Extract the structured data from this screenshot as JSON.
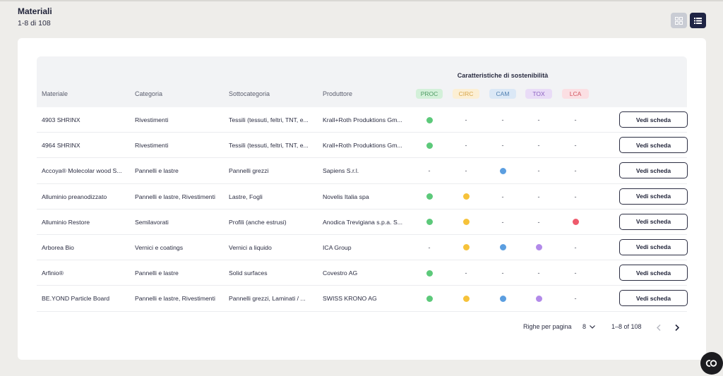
{
  "header": {
    "title": "Materiali",
    "count": "1-8 di 108"
  },
  "view_toggle": {
    "grid_icon": "grid-icon",
    "list_icon": "list-icon",
    "active": "list"
  },
  "table": {
    "group_title": "Caratteristiche di sostenibilità",
    "columns": [
      "Materiale",
      "Categoria",
      "Sottocategoria",
      "Produttore"
    ],
    "badges": [
      {
        "label": "PROC",
        "bg": "#d3f0d9",
        "fg": "#4f9b64"
      },
      {
        "label": "CIRC",
        "bg": "#fcefd4",
        "fg": "#d8a64a"
      },
      {
        "label": "CAM",
        "bg": "#dbe8f6",
        "fg": "#4f7fb0"
      },
      {
        "label": "TOX",
        "bg": "#e9dcf7",
        "fg": "#8a5fc0"
      },
      {
        "label": "LCA",
        "bg": "#fbdfe3",
        "fg": "#d2555f"
      }
    ],
    "dot_colors": {
      "PROC": "#5cc97a",
      "CIRC": "#f6c23a",
      "CAM": "#5b9ee0",
      "TOX": "#b28ae9",
      "LCA": "#ee5a6c"
    },
    "empty_marker": "-",
    "action_label": "Vedi scheda",
    "rows": [
      {
        "materiale": "4903 SHRINX",
        "categoria": "Rivestimenti",
        "sottocategoria": "Tessili (tessuti, feltri, TNT, e...",
        "produttore": "Krall+Roth Produktions Gm...",
        "flags": [
          true,
          false,
          false,
          false,
          false
        ]
      },
      {
        "materiale": "4964 SHRINX",
        "categoria": "Rivestimenti",
        "sottocategoria": "Tessili (tessuti, feltri, TNT, e...",
        "produttore": "Krall+Roth Produktions Gm...",
        "flags": [
          true,
          false,
          false,
          false,
          false
        ]
      },
      {
        "materiale": "Accoya® Molecolar wood S...",
        "categoria": "Pannelli e lastre",
        "sottocategoria": "Pannelli grezzi",
        "produttore": "Sapiens S.r.l.",
        "flags": [
          false,
          false,
          true,
          false,
          false
        ]
      },
      {
        "materiale": "Alluminio preanodizzato",
        "categoria": "Pannelli e lastre, Rivestimenti",
        "sottocategoria": "Lastre, Fogli",
        "produttore": "Novelis Italia spa",
        "flags": [
          true,
          true,
          false,
          false,
          false
        ]
      },
      {
        "materiale": "Alluminio Restore",
        "categoria": "Semilavorati",
        "sottocategoria": "Profili (anche estrusi)",
        "produttore": "Anodica Trevigiana s.p.a. S...",
        "flags": [
          true,
          true,
          false,
          false,
          true
        ]
      },
      {
        "materiale": "Arborea Bio",
        "categoria": "Vernici e coatings",
        "sottocategoria": "Vernici a liquido",
        "produttore": "ICA Group",
        "flags": [
          false,
          true,
          true,
          true,
          false
        ]
      },
      {
        "materiale": "Arfinio®",
        "categoria": "Pannelli e lastre",
        "sottocategoria": "Solid surfaces",
        "produttore": "Covestro AG",
        "flags": [
          true,
          false,
          false,
          false,
          false
        ]
      },
      {
        "materiale": "BE.YOND Particle Board",
        "categoria": "Pannelli e lastre, Rivestimenti",
        "sottocategoria": "Pannelli grezzi, Laminati / ...",
        "produttore": "SWISS KRONO AG",
        "flags": [
          true,
          true,
          true,
          true,
          false
        ]
      }
    ]
  },
  "pagination": {
    "rows_per_page_label": "Righe per pagina",
    "rows_per_page_value": "8",
    "range": "1–8 of 108",
    "prev_icon": "chevron-left-icon",
    "next_icon": "chevron-right-icon"
  },
  "fab": {
    "icon": "co-logo-icon"
  }
}
